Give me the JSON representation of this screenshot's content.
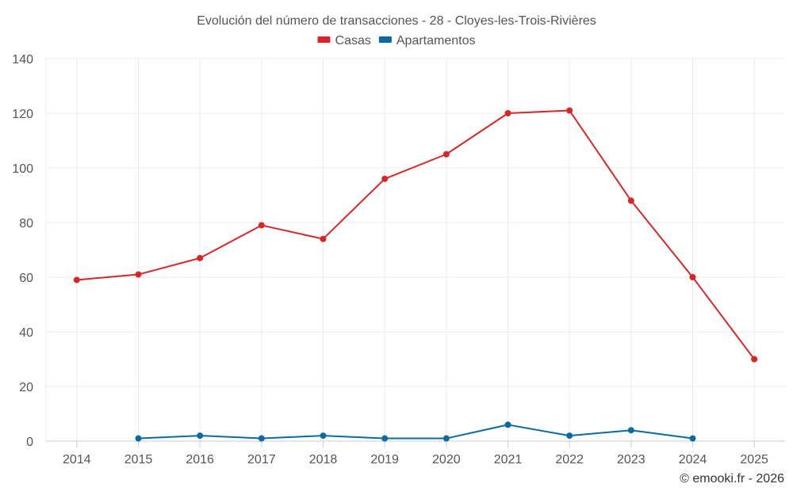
{
  "chart_data": {
    "type": "line",
    "title": "Evolución del número de transacciones - 28 - Cloyes-les-Trois-Rivières",
    "categories": [
      "2014",
      "2015",
      "2016",
      "2017",
      "2018",
      "2019",
      "2020",
      "2021",
      "2022",
      "2023",
      "2024",
      "2025"
    ],
    "ylim": [
      0,
      140
    ],
    "yticks": [
      0,
      20,
      40,
      60,
      80,
      100,
      120,
      140
    ],
    "grid": true,
    "legend_position": "top-center",
    "series": [
      {
        "name": "Casas",
        "color": "#d62728",
        "values": [
          59,
          61,
          67,
          79,
          74,
          96,
          105,
          120,
          121,
          88,
          60,
          30
        ]
      },
      {
        "name": "Apartamentos",
        "color": "#0b6a9f",
        "values": [
          null,
          1,
          2,
          1,
          2,
          1,
          1,
          6,
          2,
          4,
          1,
          null
        ]
      }
    ]
  },
  "credit": "© emooki.fr - 2026"
}
